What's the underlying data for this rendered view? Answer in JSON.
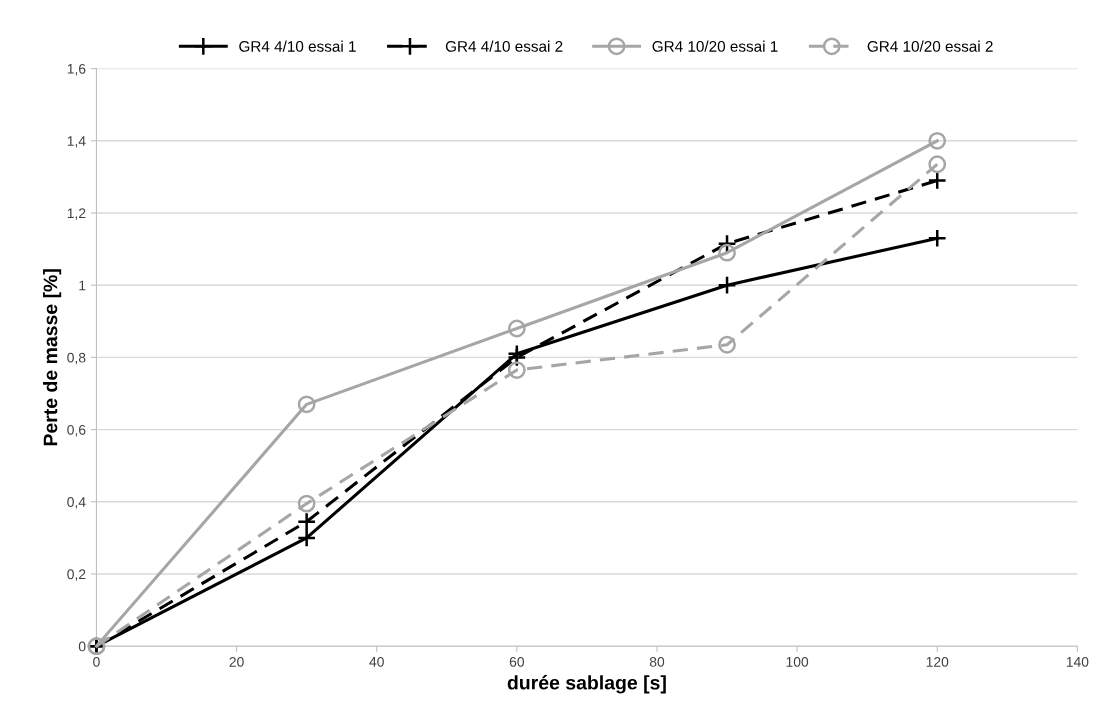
{
  "chart_data": {
    "type": "line",
    "xlabel": "durée sablage [s]",
    "ylabel": "Perte de masse [%]",
    "x": [
      0,
      30,
      60,
      90,
      120
    ],
    "series": [
      {
        "name": "GR4 4/10 essai 1",
        "color": "#000000",
        "marker": "cross",
        "line_style": "solid",
        "values": [
          0,
          0.3,
          0.81,
          1.0,
          1.13
        ]
      },
      {
        "name": "GR4 4/10 essai 2",
        "color": "#000000",
        "marker": "cross",
        "line_style": "dashed",
        "values": [
          0,
          0.345,
          0.8,
          1.115,
          1.29
        ]
      },
      {
        "name": "GR4 10/20 essai 1",
        "color": "#a6a6a6",
        "marker": "circle",
        "line_style": "solid",
        "values": [
          0,
          0.67,
          0.88,
          1.09,
          1.4
        ]
      },
      {
        "name": "GR4 10/20 essai 2",
        "color": "#a6a6a6",
        "marker": "circle",
        "line_style": "dashed",
        "values": [
          0,
          0.395,
          0.765,
          0.835,
          1.335
        ]
      }
    ],
    "xlim": [
      0,
      140
    ],
    "xticks": [
      0,
      20,
      40,
      60,
      80,
      100,
      120,
      140
    ],
    "ylim": [
      0,
      1.6
    ],
    "yticks": [
      0,
      {
        "value": 0.2,
        "label": "0,2"
      },
      {
        "value": 0.4,
        "label": "0,4"
      },
      {
        "value": 0.6,
        "label": "0,6"
      },
      {
        "value": 0.8,
        "label": "0,8"
      },
      1,
      {
        "value": 1.2,
        "label": "1,2"
      },
      {
        "value": 1.4,
        "label": "1,4"
      },
      {
        "value": 1.6,
        "label": "1,6"
      }
    ],
    "grid": "y",
    "legend": "top"
  }
}
